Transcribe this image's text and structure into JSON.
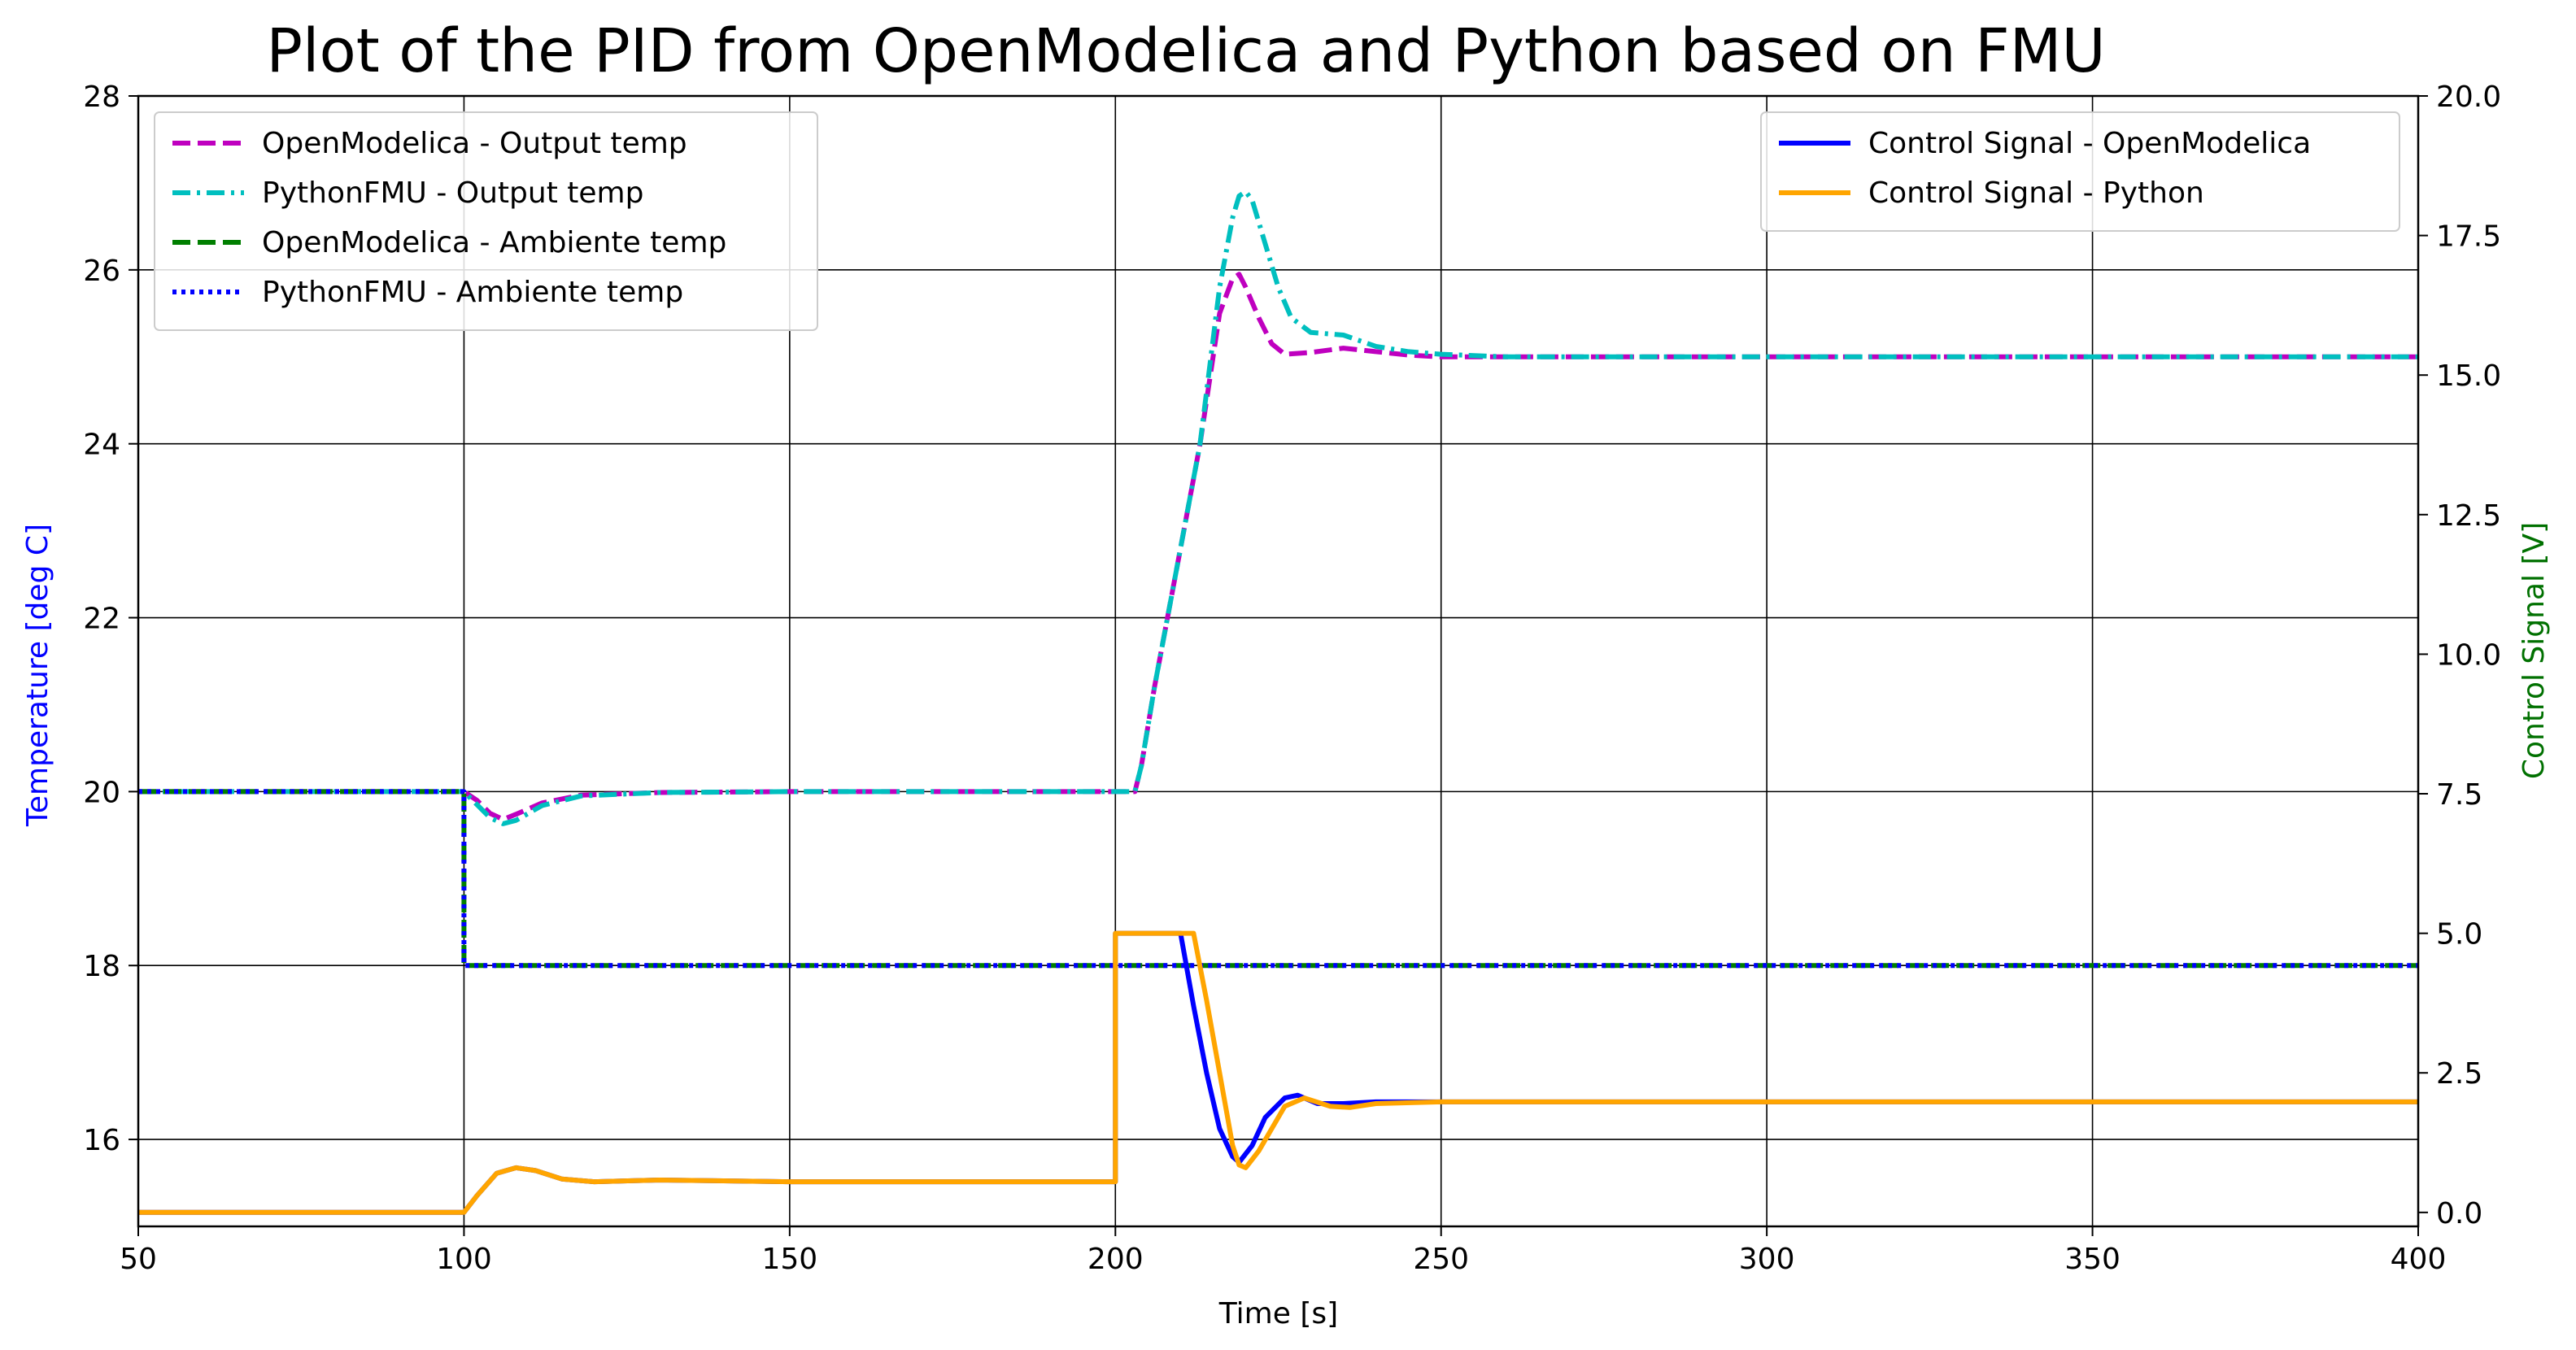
{
  "chart_data": {
    "type": "line",
    "title": "Plot of the PID from OpenModelica and Python based on FMU",
    "xlabel": "Time [s]",
    "ylabel_left": "Temperature [deg C]",
    "ylabel_right": "Control Signal [V]",
    "xlim": [
      50,
      400
    ],
    "ylim_left": [
      15,
      28
    ],
    "ylim_right": [
      -0.25,
      20.0
    ],
    "x_ticks": [
      "50",
      "100",
      "150",
      "200",
      "250",
      "300",
      "350",
      "400"
    ],
    "y_left_ticks": [
      "16",
      "18",
      "20",
      "22",
      "24",
      "26",
      "28"
    ],
    "y_right_ticks": [
      "0.0",
      "2.5",
      "5.0",
      "7.5",
      "10.0",
      "12.5",
      "15.0",
      "17.5",
      "20.0"
    ],
    "grid": true,
    "legend_left_placement": "upper-left",
    "legend_right_placement": "upper-right",
    "colors": {
      "ylabel_left": "#0000ff",
      "ylabel_right": "#007000"
    },
    "series": [
      {
        "name": "OpenModelica - Output temp",
        "axis": "left",
        "color": "#bf00bf",
        "dash": "dashed",
        "points": [
          [
            50,
            20
          ],
          [
            100,
            20
          ],
          [
            102,
            19.9
          ],
          [
            104,
            19.75
          ],
          [
            106,
            19.68
          ],
          [
            108,
            19.74
          ],
          [
            112,
            19.87
          ],
          [
            118,
            19.96
          ],
          [
            130,
            19.99
          ],
          [
            150,
            20
          ],
          [
            203,
            20
          ],
          [
            204,
            20.3
          ],
          [
            206,
            21.2
          ],
          [
            210,
            22.8
          ],
          [
            213,
            24
          ],
          [
            216,
            25.5
          ],
          [
            218,
            25.9
          ],
          [
            219,
            25.95
          ],
          [
            220,
            25.8
          ],
          [
            222,
            25.45
          ],
          [
            224,
            25.15
          ],
          [
            226,
            25.03
          ],
          [
            230,
            25.05
          ],
          [
            235,
            25.1
          ],
          [
            240,
            25.06
          ],
          [
            245,
            25.02
          ],
          [
            250,
            25.0
          ],
          [
            400,
            25.0
          ]
        ]
      },
      {
        "name": "PythonFMU - Output temp",
        "axis": "left",
        "color": "#00bfbf",
        "dash": "dashdot",
        "points": [
          [
            50,
            20
          ],
          [
            100,
            20
          ],
          [
            102,
            19.85
          ],
          [
            104,
            19.7
          ],
          [
            106,
            19.63
          ],
          [
            108,
            19.67
          ],
          [
            112,
            19.84
          ],
          [
            118,
            19.95
          ],
          [
            130,
            19.99
          ],
          [
            150,
            20
          ],
          [
            203,
            20
          ],
          [
            204,
            20.3
          ],
          [
            206,
            21.2
          ],
          [
            210,
            22.8
          ],
          [
            213,
            24
          ],
          [
            216,
            25.8
          ],
          [
            218,
            26.6
          ],
          [
            219,
            26.85
          ],
          [
            220,
            26.9
          ],
          [
            221,
            26.8
          ],
          [
            223,
            26.3
          ],
          [
            225,
            25.8
          ],
          [
            227,
            25.45
          ],
          [
            230,
            25.28
          ],
          [
            235,
            25.25
          ],
          [
            240,
            25.12
          ],
          [
            245,
            25.06
          ],
          [
            250,
            25.03
          ],
          [
            260,
            25.0
          ],
          [
            400,
            25.0
          ]
        ]
      },
      {
        "name": "OpenModelica - Ambiente temp",
        "axis": "left",
        "color": "#007f00",
        "dash": "dashed",
        "points": [
          [
            50,
            20
          ],
          [
            100,
            20
          ],
          [
            100,
            18
          ],
          [
            400,
            18
          ]
        ]
      },
      {
        "name": "PythonFMU - Ambiente temp",
        "axis": "left",
        "color": "#0000ff",
        "dash": "dotted",
        "points": [
          [
            50,
            20
          ],
          [
            100,
            20
          ],
          [
            100,
            18
          ],
          [
            400,
            18
          ]
        ]
      },
      {
        "name": "Control Signal - OpenModelica",
        "axis": "right",
        "color": "#0000ff",
        "dash": "solid",
        "points": [
          [
            50,
            0
          ],
          [
            100,
            0
          ],
          [
            102,
            0.3
          ],
          [
            105,
            0.7
          ],
          [
            108,
            0.8
          ],
          [
            111,
            0.75
          ],
          [
            115,
            0.6
          ],
          [
            120,
            0.55
          ],
          [
            130,
            0.58
          ],
          [
            150,
            0.55
          ],
          [
            200,
            0.55
          ],
          [
            200,
            5.0
          ],
          [
            210,
            5.0
          ],
          [
            212,
            3.7
          ],
          [
            214,
            2.5
          ],
          [
            216,
            1.5
          ],
          [
            218,
            1.0
          ],
          [
            219,
            0.9
          ],
          [
            221,
            1.2
          ],
          [
            223,
            1.7
          ],
          [
            226,
            2.05
          ],
          [
            228,
            2.1
          ],
          [
            231,
            1.95
          ],
          [
            235,
            1.95
          ],
          [
            240,
            1.98
          ],
          [
            250,
            1.98
          ],
          [
            400,
            1.98
          ]
        ]
      },
      {
        "name": "Control Signal - Python",
        "axis": "right",
        "color": "#ffa500",
        "dash": "solid",
        "points": [
          [
            50,
            0
          ],
          [
            100,
            0
          ],
          [
            102,
            0.3
          ],
          [
            105,
            0.7
          ],
          [
            108,
            0.8
          ],
          [
            111,
            0.75
          ],
          [
            115,
            0.6
          ],
          [
            120,
            0.55
          ],
          [
            130,
            0.58
          ],
          [
            150,
            0.55
          ],
          [
            200,
            0.55
          ],
          [
            200,
            5.0
          ],
          [
            212,
            5.0
          ],
          [
            214,
            3.8
          ],
          [
            216,
            2.5
          ],
          [
            218,
            1.2
          ],
          [
            219,
            0.85
          ],
          [
            220,
            0.8
          ],
          [
            222,
            1.1
          ],
          [
            224,
            1.5
          ],
          [
            226,
            1.9
          ],
          [
            229,
            2.05
          ],
          [
            233,
            1.9
          ],
          [
            236,
            1.88
          ],
          [
            240,
            1.95
          ],
          [
            250,
            1.98
          ],
          [
            400,
            1.98
          ]
        ]
      }
    ],
    "legend_left": [
      0,
      1,
      2,
      3
    ],
    "legend_right": [
      4,
      5
    ]
  }
}
